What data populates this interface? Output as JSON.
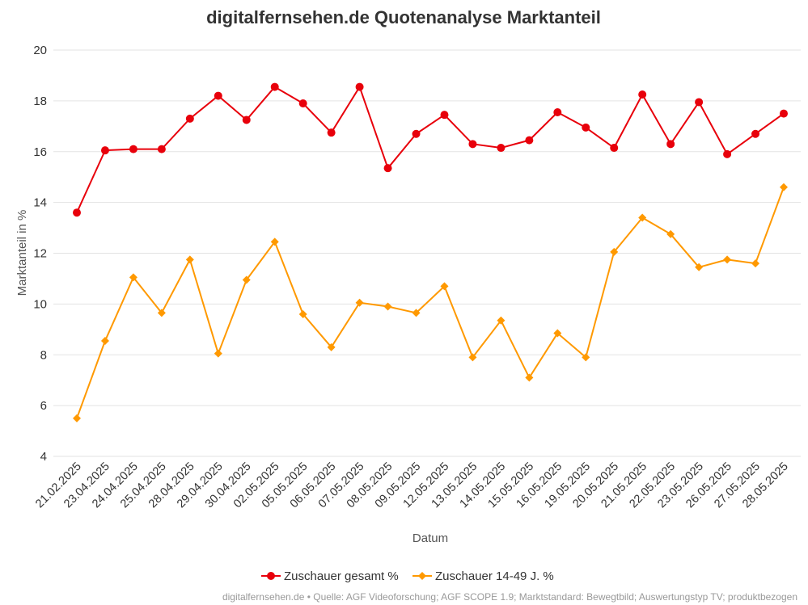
{
  "chart_data": {
    "type": "line",
    "title": "digitalfernsehen.de Quotenanalyse Marktanteil",
    "xlabel": "Datum",
    "ylabel": "Marktanteil in %",
    "ylim": [
      4,
      20
    ],
    "yticks": [
      4,
      6,
      8,
      10,
      12,
      14,
      16,
      18,
      20
    ],
    "grid": true,
    "legend_position": "bottom",
    "categories": [
      "21.02.2025",
      "23.04.2025",
      "24.04.2025",
      "25.04.2025",
      "28.04.2025",
      "29.04.2025",
      "30.04.2025",
      "02.05.2025",
      "05.05.2025",
      "06.05.2025",
      "07.05.2025",
      "08.05.2025",
      "09.05.2025",
      "12.05.2025",
      "13.05.2025",
      "14.05.2025",
      "15.05.2025",
      "16.05.2025",
      "19.05.2025",
      "20.05.2025",
      "21.05.2025",
      "22.05.2025",
      "23.05.2025",
      "26.05.2025",
      "27.05.2025",
      "28.05.2025"
    ],
    "series": [
      {
        "name": "Zuschauer gesamt %",
        "color": "#e8000b",
        "marker": "circle",
        "values": [
          13.6,
          16.05,
          16.1,
          16.1,
          17.3,
          18.2,
          17.25,
          18.55,
          17.9,
          16.75,
          18.55,
          15.35,
          16.7,
          17.45,
          16.3,
          16.15,
          16.45,
          17.55,
          16.95,
          16.15,
          18.25,
          16.3,
          17.95,
          15.9,
          16.7,
          17.5
        ]
      },
      {
        "name": "Zuschauer 14-49 J. %",
        "color": "#ff9900",
        "marker": "diamond",
        "values": [
          5.5,
          8.55,
          11.05,
          9.65,
          11.75,
          8.05,
          10.95,
          12.45,
          9.6,
          8.3,
          10.05,
          9.9,
          9.65,
          10.7,
          7.9,
          9.35,
          7.1,
          8.85,
          7.9,
          12.05,
          13.4,
          12.75,
          11.45,
          11.75,
          11.6,
          14.6
        ]
      }
    ]
  },
  "source": "digitalfernsehen.de • Quelle: AGF Videoforschung; AGF SCOPE 1.9; Marktstandard: Bewegtbild; Auswertungstyp TV; produktbezogen"
}
